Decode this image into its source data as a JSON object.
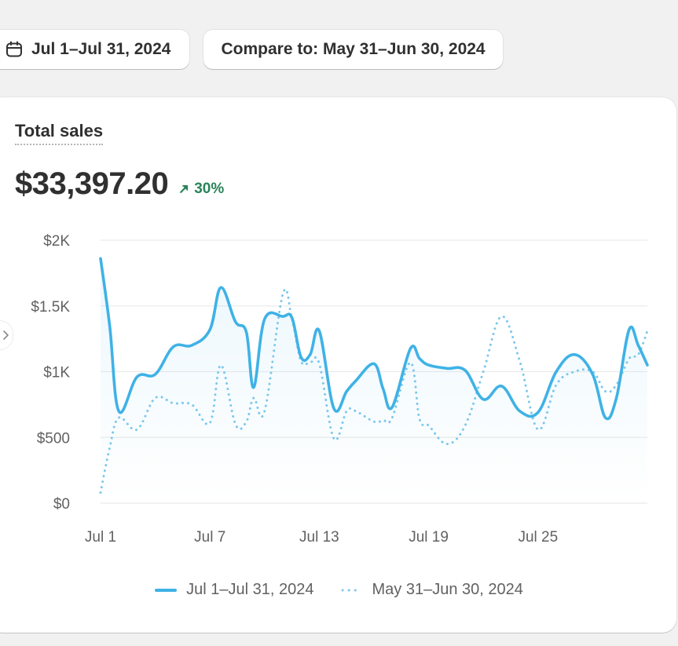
{
  "toolbar": {
    "date_range_label": "Jul 1–Jul 31, 2024",
    "compare_label": "Compare to: May 31–Jun 30, 2024",
    "calendar_icon": "calendar-icon"
  },
  "card": {
    "title": "Total sales",
    "value": "$33,397.20",
    "change": "30%",
    "change_direction": "up",
    "change_color": "#29845a"
  },
  "chart_data": {
    "type": "line",
    "title": "",
    "xlabel": "",
    "ylabel": "",
    "ylim": [
      0,
      2000
    ],
    "y_ticks": [
      0,
      500,
      1000,
      1500,
      2000
    ],
    "y_tick_labels": [
      "$0",
      "$500",
      "$1K",
      "$1.5K",
      "$2K"
    ],
    "x_ticks": [
      1,
      7,
      13,
      19,
      25
    ],
    "x_tick_labels": [
      "Jul 1",
      "Jul 7",
      "Jul 13",
      "Jul 19",
      "Jul 25"
    ],
    "xlim": [
      1,
      31
    ],
    "grid": true,
    "legend_position": "bottom",
    "series": [
      {
        "name": "Jul 1–Jul 31, 2024",
        "style": "solid",
        "color": "#3fb2e6",
        "x": [
          1,
          1.5,
          2,
          3,
          4,
          5,
          6,
          7,
          7.6,
          8.4,
          9,
          9.4,
          10,
          11,
          11.5,
          12,
          12.5,
          13,
          13.8,
          14.5,
          15,
          16,
          16.5,
          17,
          18,
          18.5,
          19,
          20,
          21,
          22,
          23,
          24,
          25,
          26,
          27,
          28,
          28.7,
          29.3,
          30,
          30.5,
          31
        ],
        "values": [
          1860,
          1350,
          700,
          960,
          980,
          1190,
          1200,
          1320,
          1640,
          1380,
          1300,
          880,
          1400,
          1420,
          1410,
          1110,
          1130,
          1310,
          720,
          850,
          930,
          1060,
          870,
          730,
          1175,
          1100,
          1050,
          1025,
          1010,
          790,
          890,
          700,
          690,
          1000,
          1130,
          980,
          650,
          800,
          1320,
          1200,
          1050
        ]
      },
      {
        "name": "May 31–Jun 30, 2024",
        "style": "dotted",
        "color": "#7cc8ec",
        "x": [
          1,
          1.5,
          2,
          3,
          4,
          5,
          6,
          7,
          7.6,
          8.4,
          9,
          9.4,
          10,
          11,
          11.5,
          12,
          12.5,
          13,
          13.8,
          14.5,
          15,
          16,
          16.5,
          17,
          18,
          18.5,
          19,
          20,
          21,
          22,
          23,
          24,
          25,
          26,
          27,
          28,
          28.7,
          29.3,
          30,
          30.5,
          31
        ],
        "values": [
          80,
          420,
          650,
          560,
          800,
          760,
          750,
          610,
          1050,
          600,
          620,
          800,
          700,
          1590,
          1400,
          1080,
          1070,
          1060,
          490,
          700,
          700,
          620,
          630,
          650,
          1070,
          640,
          590,
          450,
          590,
          1000,
          1420,
          1080,
          560,
          900,
          1000,
          1000,
          850,
          900,
          1100,
          1130,
          1310
        ]
      }
    ]
  }
}
